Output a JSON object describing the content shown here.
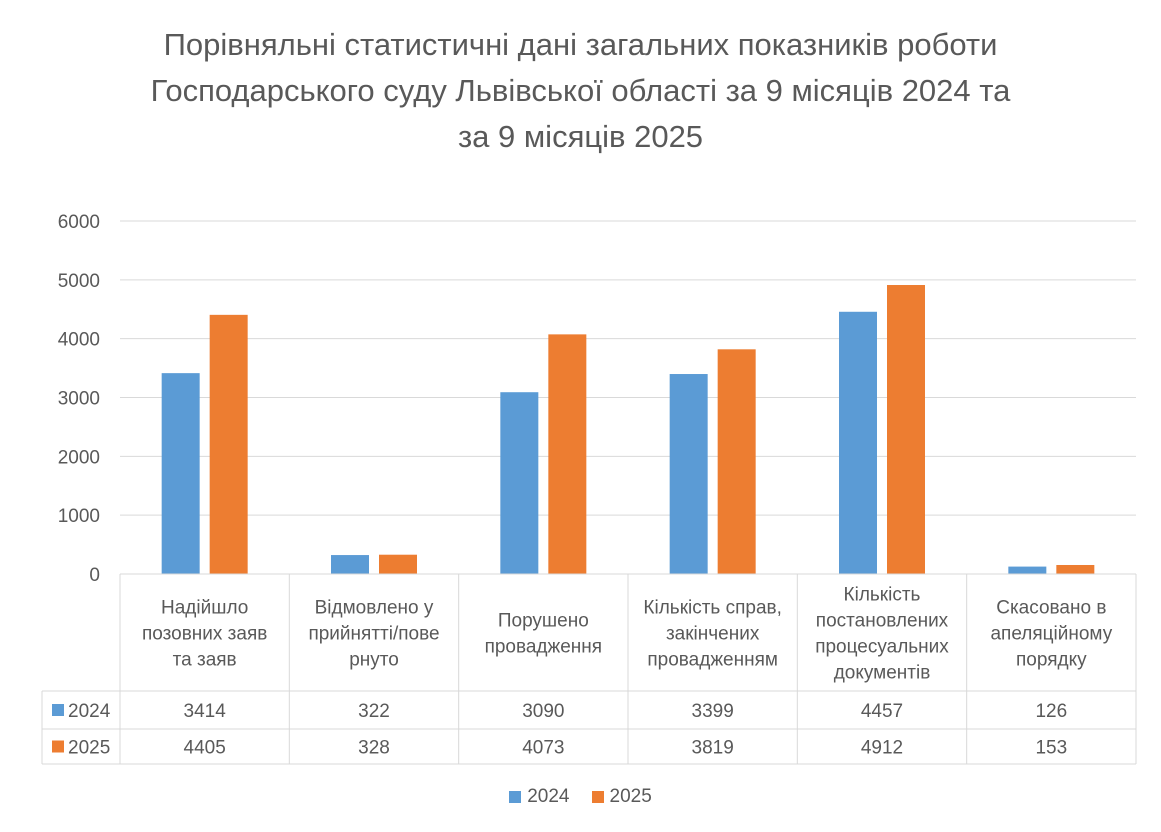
{
  "chart_data": {
    "type": "bar",
    "title_lines": [
      "Порівняльні статистичні дані загальних показників роботи",
      "Господарського суду Львівської області за 9 місяців 2024 та",
      "за 9 місяців 2025"
    ],
    "categories": [
      [
        "Надійшло",
        "позовних заяв",
        "та заяв"
      ],
      [
        "Відмовлено у",
        "прийнятті/пове",
        "рнуто"
      ],
      [
        "Порушено",
        "провадження"
      ],
      [
        "Кількість справ,",
        "закінчених",
        "провадженням"
      ],
      [
        "Кількість",
        "постановлених",
        "процесуальних",
        "документів"
      ],
      [
        "Скасовано в",
        "апеляційному",
        "порядку"
      ]
    ],
    "series": [
      {
        "name": "2024",
        "color": "#5B9BD5",
        "values": [
          3414,
          322,
          3090,
          3399,
          4457,
          126
        ]
      },
      {
        "name": "2025",
        "color": "#ED7D31",
        "values": [
          4405,
          328,
          4073,
          3819,
          4912,
          153
        ]
      }
    ],
    "y_ticks": [
      "0",
      "1000",
      "2000",
      "3000",
      "4000",
      "5000",
      "6000"
    ],
    "ylim": [
      0,
      6000
    ],
    "grid": true,
    "legend_position": "bottom",
    "data_table": true
  }
}
